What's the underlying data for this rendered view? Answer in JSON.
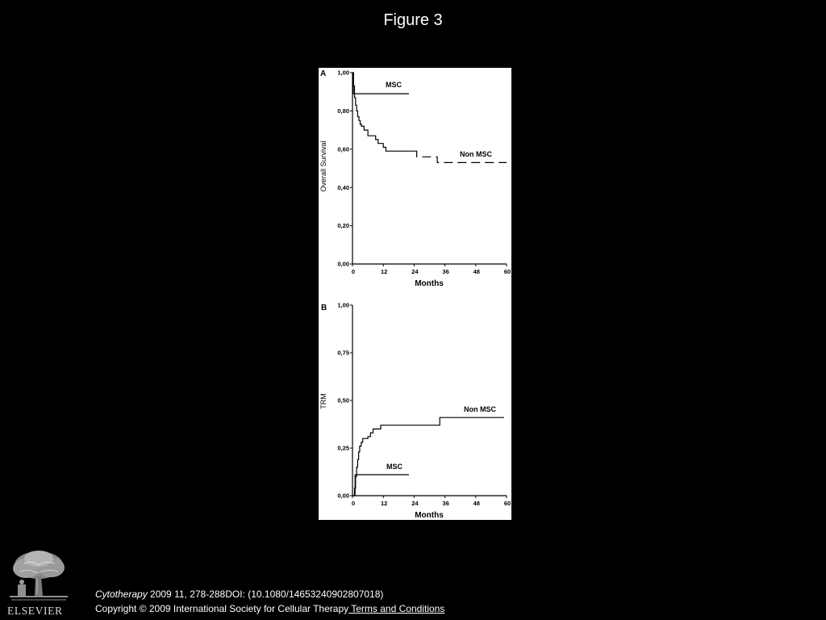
{
  "slide": {
    "title": "Figure 3"
  },
  "colors": {
    "background": "#000000",
    "text": "#ffffff",
    "figure_background": "#ffffff",
    "plot_ink": "#000000"
  },
  "chart_data": [
    {
      "panel_label": "A",
      "type": "line",
      "interpolation": "step",
      "xlabel": "Months",
      "ylabel": "Overall Survival",
      "xlim": [
        0,
        60
      ],
      "ylim": [
        0,
        1
      ],
      "x_ticks": [
        0,
        12,
        24,
        36,
        48,
        60
      ],
      "x_tick_labels": [
        "0",
        "12",
        "24",
        "36",
        "48",
        "60"
      ],
      "y_ticks": [
        0,
        0.2,
        0.4,
        0.6,
        0.8,
        1.0
      ],
      "y_tick_labels": [
        "0,00",
        "0,20",
        "0,40",
        "0,60",
        "0,80",
        "1,00"
      ],
      "grid": false,
      "series": [
        {
          "name": "MSC",
          "points": [
            [
              0,
              1.0
            ],
            [
              0.3,
              0.89
            ],
            [
              22,
              0.89
            ]
          ]
        },
        {
          "name": "Non MSC",
          "points": [
            [
              0,
              1.0
            ],
            [
              0.4,
              0.93
            ],
            [
              0.8,
              0.87
            ],
            [
              1.2,
              0.83
            ],
            [
              1.6,
              0.8
            ],
            [
              2,
              0.77
            ],
            [
              2.5,
              0.75
            ],
            [
              3,
              0.73
            ],
            [
              3.5,
              0.72
            ],
            [
              4.5,
              0.7
            ],
            [
              6,
              0.67
            ],
            [
              9,
              0.65
            ],
            [
              10,
              0.63
            ],
            [
              12,
              0.61
            ],
            [
              13,
              0.59
            ],
            [
              25,
              0.56
            ],
            [
              33,
              0.53
            ],
            [
              60,
              0.53
            ]
          ]
        }
      ]
    },
    {
      "panel_label": "B",
      "type": "line",
      "interpolation": "step",
      "xlabel": "Months",
      "ylabel": "TRM",
      "xlim": [
        0,
        60
      ],
      "ylim": [
        0,
        1
      ],
      "x_ticks": [
        0,
        12,
        24,
        36,
        48,
        60
      ],
      "x_tick_labels": [
        "0",
        "12",
        "24",
        "36",
        "48",
        "60"
      ],
      "y_ticks": [
        0,
        0.25,
        0.5,
        0.75,
        1.0
      ],
      "y_tick_labels": [
        "0,00",
        "0,25",
        "0,50",
        "0,75",
        "1,00"
      ],
      "grid": false,
      "series": [
        {
          "name": "MSC",
          "points": [
            [
              0,
              0
            ],
            [
              0.8,
              0
            ],
            [
              1,
              0.11
            ],
            [
              22,
              0.11
            ]
          ]
        },
        {
          "name": "Non MSC",
          "points": [
            [
              0,
              0
            ],
            [
              0.8,
              0.04
            ],
            [
              1.2,
              0.1
            ],
            [
              1.6,
              0.15
            ],
            [
              2,
              0.19
            ],
            [
              2.4,
              0.23
            ],
            [
              2.8,
              0.26
            ],
            [
              3.4,
              0.28
            ],
            [
              4,
              0.3
            ],
            [
              6,
              0.31
            ],
            [
              7,
              0.33
            ],
            [
              8,
              0.35
            ],
            [
              11,
              0.37
            ],
            [
              34,
              0.41
            ],
            [
              59,
              0.41
            ]
          ]
        }
      ]
    }
  ],
  "footer": {
    "logo_text": "ELSEVIER",
    "journal": "Cytotherapy",
    "citation_rest": " 2009 11, 278-288DOI: (10.1080/14653240902807018)",
    "copyright": "Copyright © 2009 International Society for Cellular Therapy",
    "terms_link": " Terms and Conditions"
  }
}
